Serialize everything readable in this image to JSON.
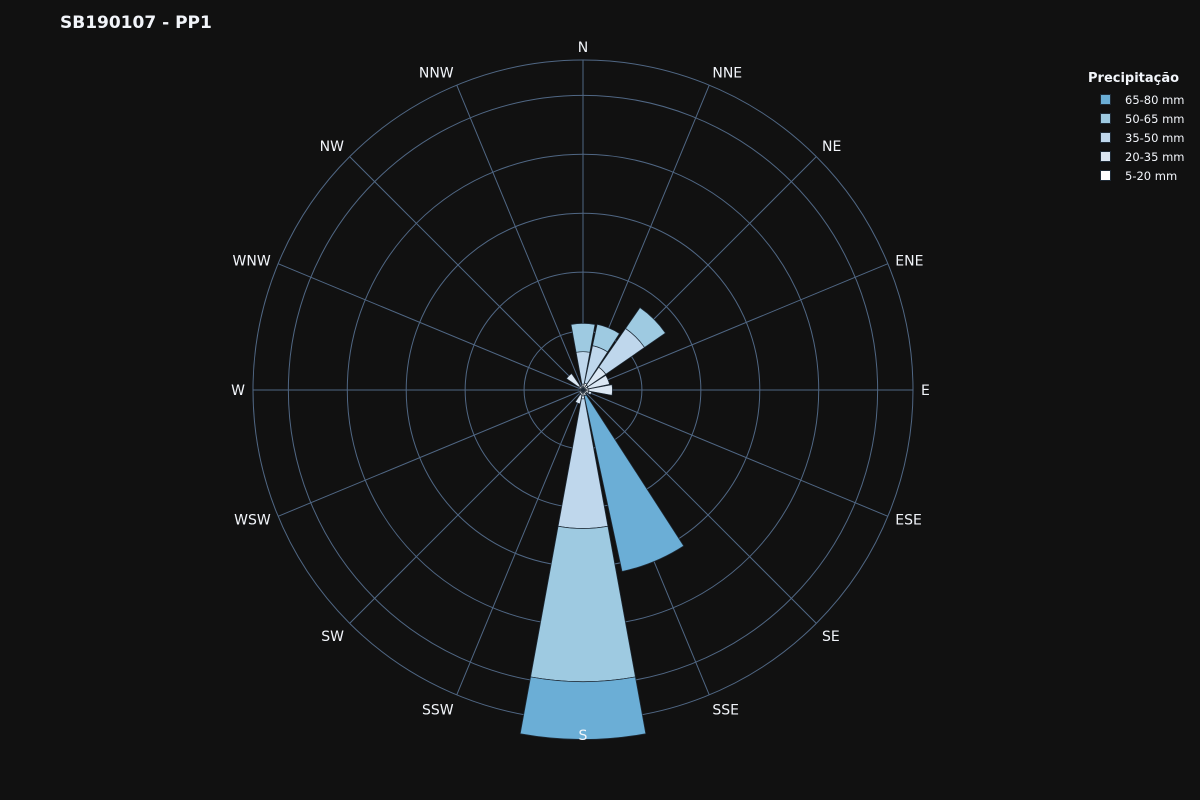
{
  "chart_data": {
    "type": "barpolar",
    "title": "SB190107 - PP1",
    "legend_title": "Precipitação",
    "legend_position": "top-right",
    "directions": [
      "N",
      "NNE",
      "NE",
      "ENE",
      "E",
      "ESE",
      "SE",
      "SSE",
      "S",
      "SSW",
      "SW",
      "WSW",
      "W",
      "WNW",
      "NW",
      "NNW"
    ],
    "radial_axis": {
      "range": [
        0,
        560
      ],
      "gridlines": [
        100,
        200,
        300,
        400,
        500
      ],
      "tick_labels_visible": false
    },
    "series": [
      {
        "name": "5-20 mm",
        "color": "#ffffff",
        "values": [
          10,
          12,
          10,
          9,
          10,
          10,
          8,
          10,
          10,
          9,
          8,
          7,
          6,
          7,
          9,
          7
        ]
      },
      {
        "name": "20-35 mm",
        "color": "#dbe7f3",
        "values": [
          0,
          0,
          37,
          37,
          40,
          5,
          0,
          0,
          5,
          15,
          0,
          0,
          0,
          0,
          25,
          0
        ]
      },
      {
        "name": "35-50 mm",
        "color": "#bfd7ec",
        "values": [
          55,
          65,
          80,
          0,
          0,
          0,
          0,
          0,
          220,
          0,
          0,
          0,
          0,
          0,
          0,
          0
        ]
      },
      {
        "name": "50-65 mm",
        "color": "#9ecae1",
        "values": [
          48,
          37,
          43,
          0,
          0,
          0,
          0,
          0,
          260,
          0,
          0,
          0,
          0,
          0,
          0,
          0
        ]
      },
      {
        "name": "65-80 mm",
        "color": "#6baed6",
        "values": [
          0,
          0,
          0,
          0,
          0,
          0,
          0,
          305,
          98,
          0,
          0,
          0,
          0,
          0,
          0,
          0
        ]
      }
    ]
  }
}
